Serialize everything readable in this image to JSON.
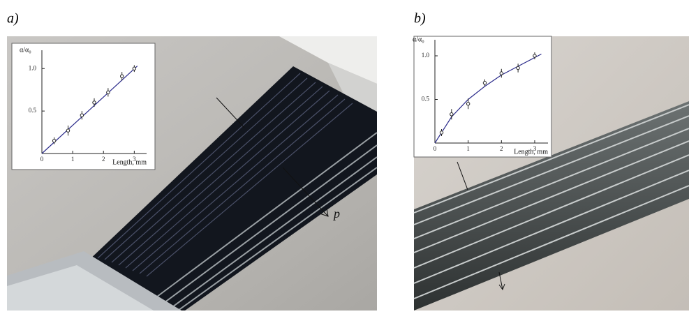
{
  "panel_labels": [
    "a)",
    "b)"
  ],
  "arrow_label": "p",
  "chart_data": [
    {
      "type": "scatter",
      "ylabel": "α/α₀",
      "xlabel": "Length, mm",
      "xlim": [
        0,
        3.4
      ],
      "ylim": [
        0,
        1.15
      ],
      "xticks": [
        0,
        1,
        2,
        3
      ],
      "yticks": [
        0.5,
        {
          "value": 1,
          "label": "1.0"
        }
      ],
      "series": [
        {
          "x": [
            0.4,
            0.85,
            1.3,
            1.7,
            2.15,
            2.6,
            3.0
          ],
          "values": [
            0.15,
            0.27,
            0.45,
            0.6,
            0.72,
            0.91,
            1.0
          ],
          "errors": [
            0.04,
            0.06,
            0.05,
            0.05,
            0.05,
            0.05,
            0.04
          ],
          "color": "#222"
        },
        {
          "x": [
            0,
            3.1
          ],
          "values": [
            0.0,
            1.03
          ],
          "color": "#2a2a8a"
        }
      ]
    },
    {
      "type": "scatter",
      "ylabel": "α/α₀",
      "xlabel": "Length, mm",
      "xlim": [
        0,
        3.4
      ],
      "ylim": [
        0,
        1.12
      ],
      "xticks": [
        0,
        1,
        2,
        3
      ],
      "yticks": [
        0.5,
        {
          "value": 1,
          "label": "1.0"
        }
      ],
      "series": [
        {
          "x": [
            0.2,
            0.5,
            1.0,
            1.5,
            2.0,
            2.5,
            3.0
          ],
          "values": [
            0.12,
            0.33,
            0.45,
            0.69,
            0.8,
            0.86,
            1.0
          ],
          "errors": [
            0.04,
            0.06,
            0.06,
            0.04,
            0.05,
            0.05,
            0.04
          ],
          "color": "#222"
        },
        {
          "x": [
            0,
            0.5,
            1.0,
            1.5,
            2.0,
            2.5,
            3.0,
            3.2
          ],
          "values": [
            0.0,
            0.3,
            0.5,
            0.65,
            0.78,
            0.88,
            0.98,
            1.02
          ],
          "color": "#2a2a8a"
        }
      ]
    }
  ]
}
